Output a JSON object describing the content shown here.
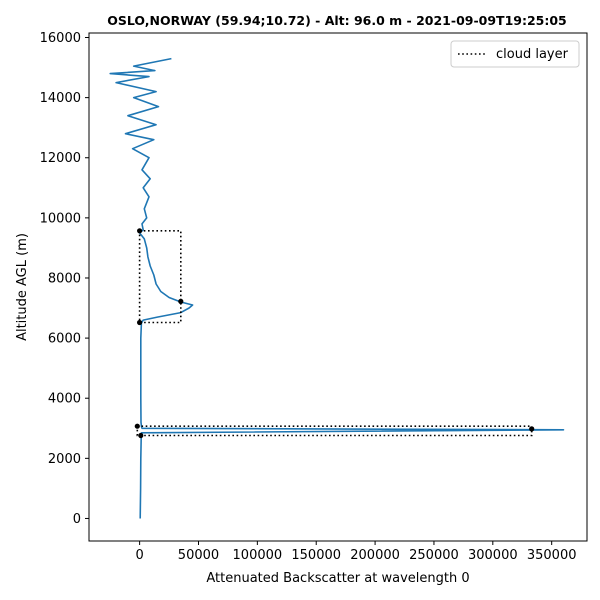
{
  "chart_data": {
    "type": "line",
    "title": "OSLO,NORWAY (59.94;10.72) - Alt: 96.0 m - 2021-09-09T19:25:05",
    "xlabel": "Attenuated Backscatter at wavelength 0",
    "ylabel": "Altitude AGL (m)",
    "xlim": [
      -43000,
      380000
    ],
    "ylim": [
      -750,
      16150
    ],
    "xticks": [
      0,
      50000,
      100000,
      150000,
      200000,
      250000,
      300000,
      350000
    ],
    "yticks": [
      0,
      2000,
      4000,
      6000,
      8000,
      10000,
      12000,
      14000,
      16000
    ],
    "grid": false,
    "legend_position": "top-right",
    "series": [
      {
        "color": "#1f77b4",
        "points": [
          [
            500,
            0
          ],
          [
            800,
            1000
          ],
          [
            1000,
            2000
          ],
          [
            1300,
            2700
          ],
          [
            1500,
            2850
          ],
          [
            360000,
            2950
          ],
          [
            2000,
            3000
          ],
          [
            1600,
            3050
          ],
          [
            1200,
            3200
          ],
          [
            1000,
            4000
          ],
          [
            1000,
            5000
          ],
          [
            1000,
            6000
          ],
          [
            1500,
            6500
          ],
          [
            3000,
            6600
          ],
          [
            15000,
            6700
          ],
          [
            35000,
            6850
          ],
          [
            42000,
            7000
          ],
          [
            45000,
            7100
          ],
          [
            35000,
            7200
          ],
          [
            25000,
            7350
          ],
          [
            18000,
            7550
          ],
          [
            14000,
            7800
          ],
          [
            12000,
            8100
          ],
          [
            9000,
            8400
          ],
          [
            7000,
            8700
          ],
          [
            6000,
            9000
          ],
          [
            4000,
            9300
          ],
          [
            0,
            9500
          ],
          [
            3000,
            9600
          ],
          [
            2000,
            9800
          ],
          [
            6000,
            10000
          ],
          [
            4000,
            10300
          ],
          [
            8000,
            10700
          ],
          [
            3000,
            11000
          ],
          [
            9000,
            11300
          ],
          [
            2000,
            11600
          ],
          [
            8000,
            12000
          ],
          [
            -6000,
            12300
          ],
          [
            12000,
            12600
          ],
          [
            -12000,
            12800
          ],
          [
            14000,
            13100
          ],
          [
            -10000,
            13400
          ],
          [
            16000,
            13700
          ],
          [
            -5000,
            14000
          ],
          [
            14000,
            14200
          ],
          [
            -20000,
            14500
          ],
          [
            8000,
            14700
          ],
          [
            -25000,
            14800
          ],
          [
            13000,
            14900
          ],
          [
            -5000,
            15050
          ],
          [
            27000,
            15300
          ]
        ]
      },
      {
        "name": "cloud layer",
        "style": "dotted",
        "color": "#000000",
        "points": [
          [
            0,
            9570
          ],
          [
            35000,
            9570
          ],
          [
            35000,
            6520
          ],
          [
            0,
            6520
          ],
          [
            0,
            9570
          ]
        ]
      },
      {
        "name": "cloud layer",
        "style": "dotted",
        "color": "#000000",
        "points": [
          [
            -2000,
            3070
          ],
          [
            333000,
            3070
          ],
          [
            333000,
            2760
          ],
          [
            -2000,
            2760
          ],
          [
            -2000,
            3070
          ]
        ]
      }
    ],
    "markers": [
      [
        0,
        9570
      ],
      [
        35000,
        7220
      ],
      [
        0,
        6520
      ],
      [
        -2000,
        3070
      ],
      [
        333000,
        2980
      ],
      [
        1000,
        2760
      ]
    ],
    "legend": [
      "cloud layer"
    ]
  }
}
